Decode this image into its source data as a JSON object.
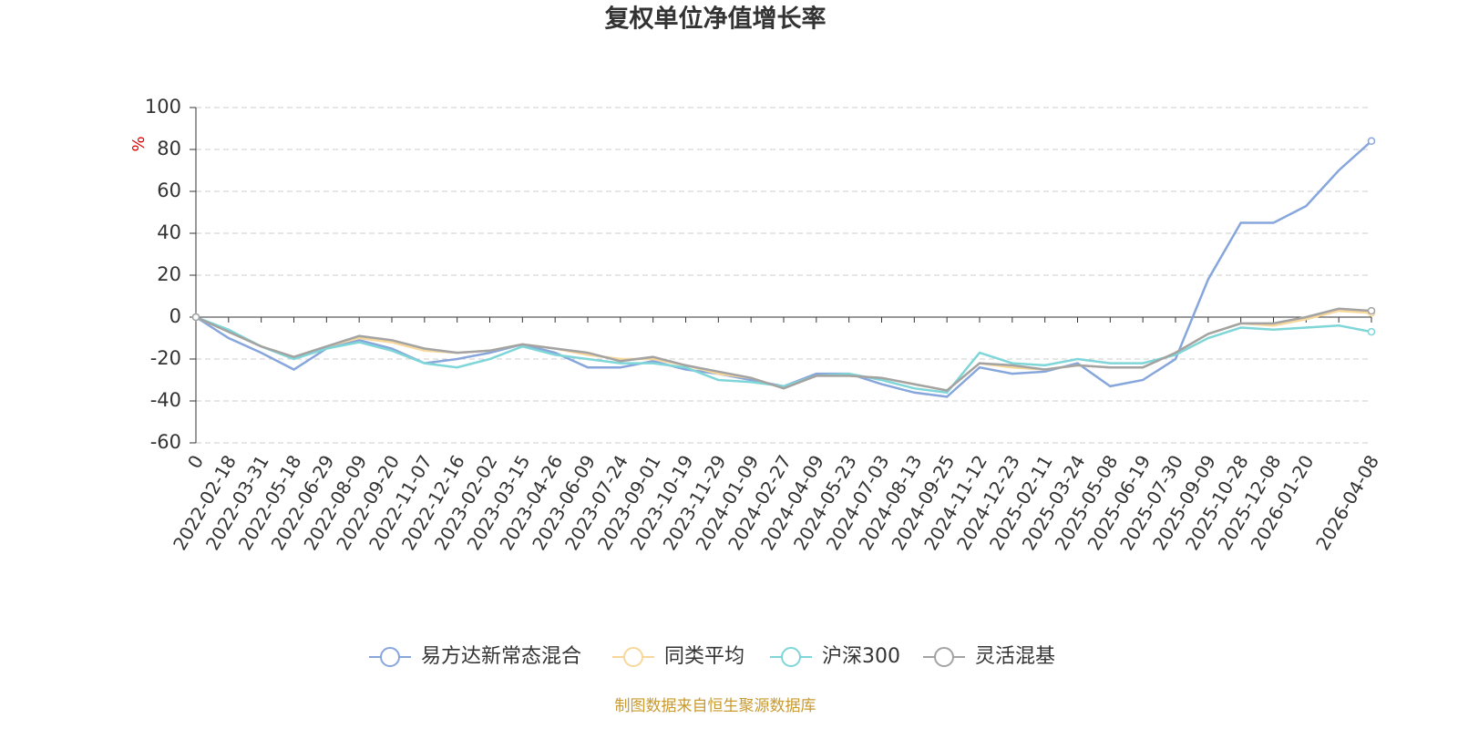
{
  "chart_data": {
    "type": "line",
    "title": "复权单位净值增长率",
    "y_label": "%",
    "source": "制图数据来自恒生聚源数据库",
    "categories": [
      "0",
      "2022-02-18",
      "2022-03-31",
      "2022-05-18",
      "2022-06-29",
      "2022-08-09",
      "2022-09-20",
      "2022-11-07",
      "2022-12-16",
      "2023-02-02",
      "2023-03-15",
      "2023-04-26",
      "2023-06-09",
      "2023-07-24",
      "2023-09-01",
      "2023-10-19",
      "2023-11-29",
      "2024-01-09",
      "2024-02-27",
      "2024-04-09",
      "2024-05-23",
      "2024-07-03",
      "2024-08-13",
      "2024-09-25",
      "2024-11-12",
      "2024-12-23",
      "2025-02-11",
      "2025-03-24",
      "2025-05-08",
      "2025-06-19",
      "2025-07-30",
      "2025-09-09",
      "2025-10-28",
      "2025-12-08",
      "2026-01-20",
      null,
      "2026-04-08"
    ],
    "series": [
      {
        "name": "易方达新常态混合",
        "color": "#86a6dc",
        "values": [
          0,
          -10,
          -17,
          -25,
          -15,
          -11,
          -15,
          -22,
          -20,
          -17,
          -13,
          -17,
          -24,
          -24,
          -21,
          -25,
          -27,
          -30,
          -33,
          -27,
          -27,
          -32,
          -36,
          -38,
          -24,
          -27,
          -26,
          -22,
          -33,
          -30,
          -20,
          18,
          45,
          45,
          53,
          70,
          84
        ]
      },
      {
        "name": "同类平均",
        "color": "#f7d79a",
        "values": [
          0,
          -7,
          -14,
          -19,
          -14,
          -10,
          -12,
          -16,
          -17,
          -16,
          -13,
          -15,
          -18,
          -20,
          -20,
          -23,
          -27,
          -29,
          -34,
          -28,
          -28,
          -29,
          -32,
          -35,
          -22,
          -24,
          -25,
          -23,
          -24,
          -24,
          -17,
          -8,
          -3,
          -4,
          -1,
          3,
          2
        ]
      },
      {
        "name": "沪深300",
        "color": "#7fd6d8",
        "values": [
          0,
          -6,
          -14,
          -20,
          -15,
          -12,
          -16,
          -22,
          -24,
          -20,
          -14,
          -18,
          -20,
          -22,
          -22,
          -24,
          -30,
          -31,
          -33,
          -28,
          -27,
          -30,
          -34,
          -36,
          -17,
          -22,
          -23,
          -20,
          -22,
          -22,
          -18,
          -10,
          -5,
          -6,
          -5,
          -4,
          -7
        ]
      },
      {
        "name": "灵活混基",
        "color": "#a3a3a3",
        "values": [
          0,
          -7,
          -14,
          -19,
          -14,
          -9,
          -11,
          -15,
          -17,
          -16,
          -13,
          -15,
          -17,
          -21,
          -19,
          -23,
          -26,
          -29,
          -34,
          -28,
          -28,
          -29,
          -32,
          -35,
          -22,
          -23,
          -25,
          -23,
          -24,
          -24,
          -17,
          -8,
          -3,
          -3,
          0,
          4,
          3
        ]
      }
    ],
    "ylim": [
      -60,
      100
    ],
    "yticks": [
      -60,
      -40,
      -20,
      0,
      20,
      40,
      60,
      80,
      100
    ],
    "grid": true
  }
}
